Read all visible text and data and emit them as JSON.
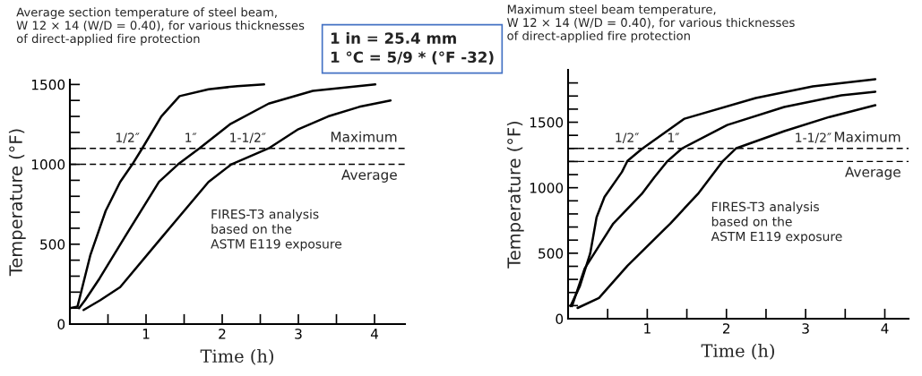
{
  "chart_data": [
    {
      "type": "line",
      "title": "Average section temperature of steel beam,\nW 12 × 14 (W/D = 0.40), for various thicknesses\nof direct-applied fire protection",
      "xlabel": "Time (h)",
      "ylabel": "Temperature (°F)",
      "xlim": [
        0,
        4.4
      ],
      "ylim": [
        0,
        1530
      ],
      "xticks": [
        {
          "value": 0.5,
          "label": null
        },
        1,
        {
          "value": 1.5,
          "label": null
        },
        2,
        {
          "value": 2.5,
          "label": null
        },
        3,
        {
          "value": 3.5,
          "label": null
        },
        4
      ],
      "yticks": [
        0,
        {
          "value": 100,
          "label": null
        },
        {
          "value": 200,
          "label": null
        },
        {
          "value": 300,
          "label": null
        },
        {
          "value": 400,
          "label": null
        },
        500,
        {
          "value": 600,
          "label": null
        },
        {
          "value": 700,
          "label": null
        },
        {
          "value": 800,
          "label": null
        },
        {
          "value": 900,
          "label": null
        },
        1000,
        {
          "value": 1100,
          "label": null
        },
        {
          "value": 1200,
          "label": null
        },
        {
          "value": 1300,
          "label": null
        },
        {
          "value": 1400,
          "label": null
        },
        1500
      ],
      "grid": false,
      "legend": false,
      "line_style": "solid",
      "series": [
        {
          "color": "#000000",
          "x": [
            0,
            0.1,
            0.27,
            0.47,
            0.66,
            0.82,
            0.95,
            1.2,
            1.44,
            1.82,
            2.2,
            2.55
          ],
          "values": [
            100,
            110,
            434,
            709,
            890,
            1000,
            1100,
            1300,
            1427,
            1470,
            1490,
            1500
          ]
        },
        {
          "color": "#000000",
          "x": [
            0.12,
            0.2,
            0.39,
            0.74,
            1.17,
            1.42,
            1.7,
            2.1,
            2.61,
            3.19,
            4.01
          ],
          "values": [
            100,
            150,
            286,
            560,
            890,
            1000,
            1100,
            1250,
            1380,
            1460,
            1500
          ]
        },
        {
          "color": "#000000",
          "x": [
            0.18,
            0.4,
            0.66,
            1.17,
            1.82,
            2.12,
            2.61,
            3.0,
            3.39,
            3.8,
            4.21
          ],
          "values": [
            88,
            150,
            231,
            522,
            890,
            1000,
            1100,
            1220,
            1300,
            1360,
            1400
          ]
        }
      ],
      "ref_lines": [
        {
          "axis": "y",
          "value": 1100,
          "label": "Maximum",
          "line_style": "dashed"
        },
        {
          "axis": "y",
          "value": 1000,
          "label": "Average",
          "line_style": "dashed"
        }
      ],
      "annotations": [
        "FIRES-T3 analysis\nbased on the\nASTM E119 exposure",
        "1 in = 25.4 mm\n1 °C = 5/9 * (°F -32)",
        {
          "text": "1/2″",
          "x": 0.95,
          "y": 1100
        },
        {
          "text": "1″",
          "x": 1.7,
          "y": 1100
        },
        {
          "text": "1-1/2″",
          "x": 2.61,
          "y": 1100
        }
      ]
    },
    {
      "type": "line",
      "title": "Maximum steel beam temperature,\nW 12 × 14 (W/D = 0.40), for various thicknesses\nof direct-applied fire protection",
      "xlabel": "Time (h)",
      "ylabel": "Temperature (°F)",
      "xlim": [
        0,
        4.3
      ],
      "ylim": [
        0,
        1900
      ],
      "xticks": [
        {
          "value": 0.5,
          "label": null
        },
        1,
        {
          "value": 1.5,
          "label": null
        },
        2,
        {
          "value": 2.5,
          "label": null
        },
        3,
        {
          "value": 3.5,
          "label": null
        },
        4
      ],
      "yticks": [
        0,
        {
          "value": 100,
          "label": null
        },
        {
          "value": 200,
          "label": null
        },
        {
          "value": 300,
          "label": null
        },
        {
          "value": 400,
          "label": null
        },
        500,
        {
          "value": 600,
          "label": null
        },
        {
          "value": 700,
          "label": null
        },
        {
          "value": 800,
          "label": null
        },
        {
          "value": 900,
          "label": null
        },
        1000,
        {
          "value": 1100,
          "label": null
        },
        {
          "value": 1200,
          "label": null
        },
        {
          "value": 1300,
          "label": null
        },
        {
          "value": 1400,
          "label": null
        },
        1500,
        {
          "value": 1600,
          "label": null
        },
        {
          "value": 1700,
          "label": null
        },
        {
          "value": 1800,
          "label": null
        }
      ],
      "grid": false,
      "legend": false,
      "line_style": "solid",
      "series": [
        {
          "color": "#000000",
          "x": [
            0.03,
            0.15,
            0.28,
            0.36,
            0.46,
            0.68,
            0.75,
            0.93,
            1.47,
            2.37,
            3.09,
            3.88
          ],
          "values": [
            96,
            250,
            500,
            774,
            930,
            1120,
            1205,
            1295,
            1527,
            1685,
            1774,
            1829
          ]
        },
        {
          "color": "#000000",
          "x": [
            0.05,
            0.21,
            0.57,
            0.93,
            1.09,
            1.25,
            1.44,
            2.01,
            2.73,
            3.45,
            3.88
          ],
          "values": [
            96,
            384,
            726,
            952,
            1080,
            1200,
            1300,
            1479,
            1616,
            1705,
            1733
          ]
        },
        {
          "color": "#000000",
          "x": [
            0.12,
            0.39,
            0.75,
            1.29,
            1.65,
            1.95,
            2.12,
            2.73,
            3.3,
            3.88
          ],
          "values": [
            82,
            158,
            404,
            726,
            960,
            1200,
            1300,
            1432,
            1540,
            1630
          ]
        }
      ],
      "ref_lines": [
        {
          "axis": "y",
          "value": 1300,
          "label": "Maximum",
          "line_style": "dashed"
        },
        {
          "axis": "y",
          "value": 1200,
          "label": "Average",
          "line_style": "dashed"
        }
      ],
      "annotations": [
        "FIRES-T3 analysis\nbased on the\nASTM E119 exposure",
        {
          "text": "1/2″",
          "x": 0.93,
          "y": 1300
        },
        {
          "text": "1″",
          "x": 1.44,
          "y": 1300
        },
        {
          "text": "1-1/2″",
          "x": 3.36,
          "y": 1300
        }
      ]
    }
  ]
}
